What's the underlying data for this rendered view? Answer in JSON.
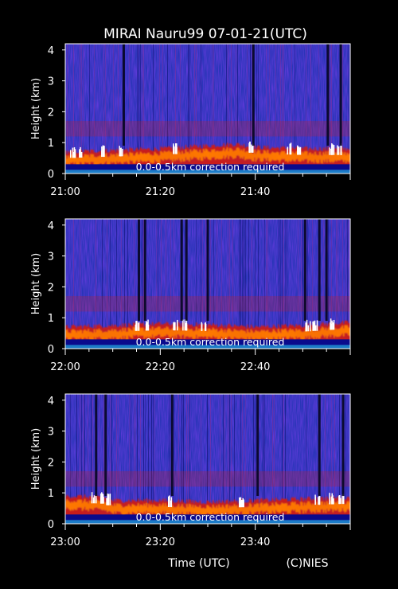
{
  "chart_data": {
    "type": "heatmap",
    "title": "MIRAI Nauru99 07-01-21(UTC)",
    "xlabel": "Time (UTC)",
    "credit": "(C)NIES",
    "colors": {
      "background": "#000000",
      "noise": "#2a35b8",
      "layer": "#c81e1e",
      "strong": "#ff7a00",
      "peak": "#ffffff",
      "floor": "#0a0a8c"
    },
    "panels": [
      {
        "ylabel": "Height (km)",
        "ylim": [
          0,
          4.2
        ],
        "yticks": [
          "0",
          "1",
          "2",
          "3",
          "4"
        ],
        "xlim_minutes": [
          0,
          60
        ],
        "xticks": [
          "21:00",
          "21:20",
          "21:40"
        ],
        "annotation": "0.0-0.5km correction required",
        "dropouts_minutes": [
          12.3,
          39.6,
          55.3,
          58.0
        ],
        "boundary_km": [
          [
            0,
            0.55
          ],
          [
            10,
            0.6
          ],
          [
            20,
            0.65
          ],
          [
            30,
            0.75
          ],
          [
            36,
            0.8
          ],
          [
            40,
            0.7
          ],
          [
            50,
            0.65
          ],
          [
            60,
            0.65
          ]
        ],
        "peaks_minutes": [
          1.5,
          3,
          8,
          11.5,
          23,
          39,
          47,
          49,
          56,
          57.5
        ]
      },
      {
        "ylabel": "Height (km)",
        "ylim": [
          0,
          4.2
        ],
        "yticks": [
          "0",
          "1",
          "2",
          "3",
          "4"
        ],
        "xlim_minutes": [
          0,
          60
        ],
        "xticks": [
          "22:00",
          "22:20",
          "22:40"
        ],
        "annotation": "0.0-0.5km correction required",
        "dropouts_minutes": [
          15.5,
          16.8,
          24.5,
          25.5,
          30.0,
          50.5,
          53.5,
          55.0
        ],
        "boundary_km": [
          [
            0,
            0.55
          ],
          [
            10,
            0.6
          ],
          [
            20,
            0.65
          ],
          [
            30,
            0.62
          ],
          [
            40,
            0.55
          ],
          [
            50,
            0.6
          ],
          [
            60,
            0.7
          ]
        ],
        "peaks_minutes": [
          15,
          17,
          23,
          25,
          29,
          51,
          52.5,
          56
        ]
      },
      {
        "ylabel": "Height (km)",
        "ylim": [
          0,
          4.2
        ],
        "yticks": [
          "0",
          "1",
          "2",
          "3",
          "4"
        ],
        "xlim_minutes": [
          0,
          60
        ],
        "xticks": [
          "23:00",
          "23:20",
          "23:40"
        ],
        "annotation": "0.0-0.5km correction required",
        "dropouts_minutes": [
          6.5,
          8.5,
          22.5,
          40.5,
          53.5,
          58.5
        ],
        "boundary_km": [
          [
            0,
            0.75
          ],
          [
            8,
            0.7
          ],
          [
            10,
            0.6
          ],
          [
            20,
            0.6
          ],
          [
            30,
            0.55
          ],
          [
            40,
            0.6
          ],
          [
            50,
            0.65
          ],
          [
            60,
            0.7
          ]
        ],
        "peaks_minutes": [
          6,
          7.5,
          9,
          22,
          37,
          53,
          56,
          58
        ]
      }
    ]
  }
}
